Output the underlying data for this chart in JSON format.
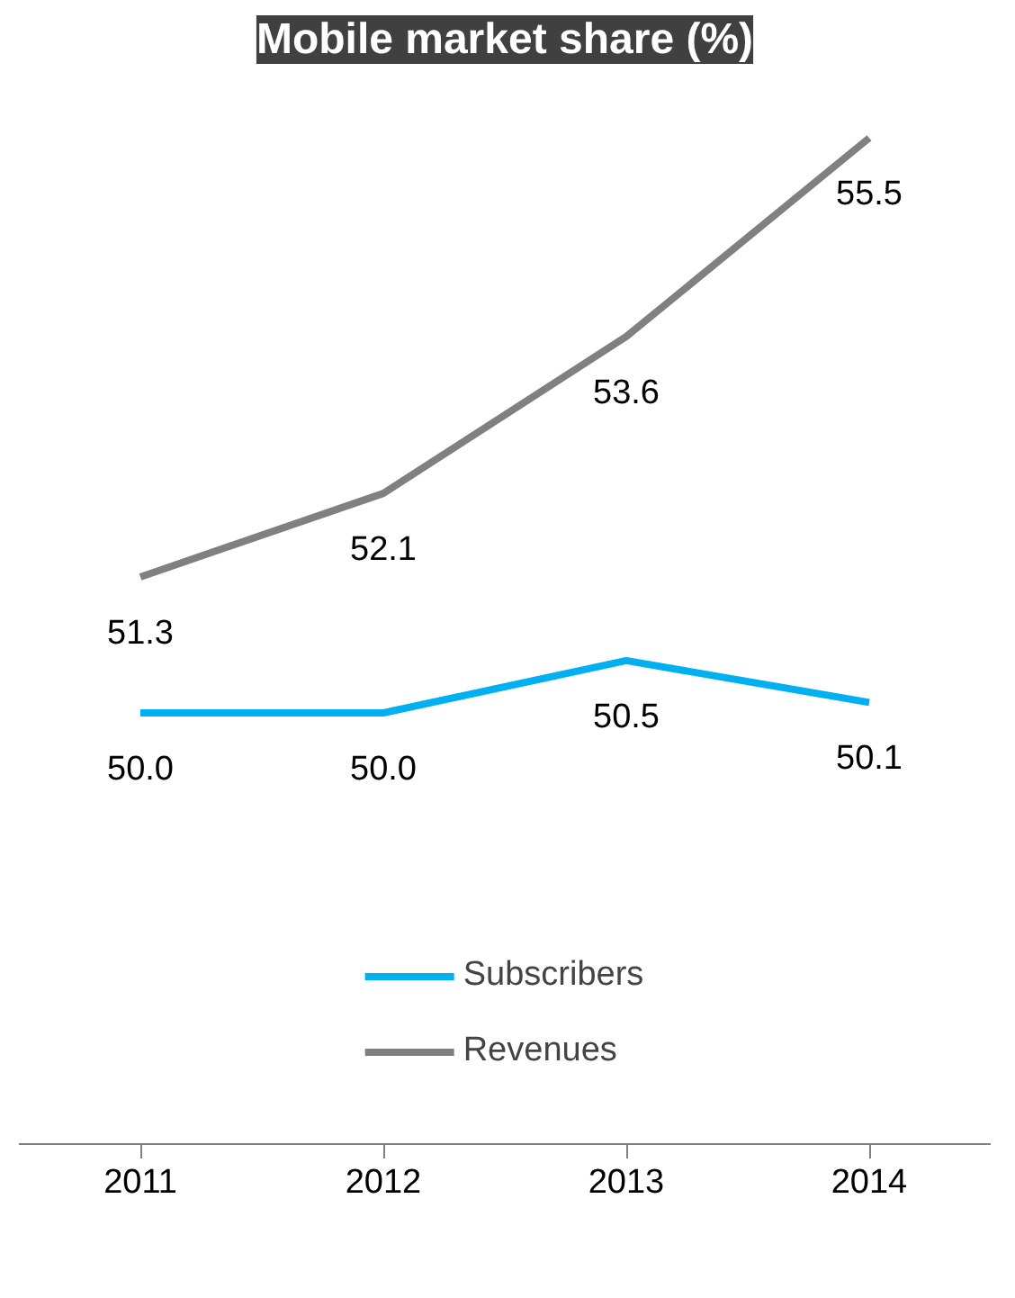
{
  "chart_data": {
    "type": "line",
    "title": "Mobile market share (%)",
    "categories": [
      "2011",
      "2012",
      "2013",
      "2014"
    ],
    "series": [
      {
        "name": "Subscribers",
        "color": "#00b0f0",
        "values": [
          50.0,
          50.0,
          50.5,
          50.1
        ],
        "value_labels": [
          "50.0",
          "50.0",
          "50.5",
          "50.1"
        ]
      },
      {
        "name": "Revenues",
        "color": "#808080",
        "values": [
          51.3,
          52.1,
          53.6,
          55.5
        ],
        "value_labels": [
          "51.3",
          "52.1",
          "53.6",
          "55.5"
        ]
      }
    ],
    "legend": "bottom",
    "tick_labels": "x",
    "grid": false
  }
}
